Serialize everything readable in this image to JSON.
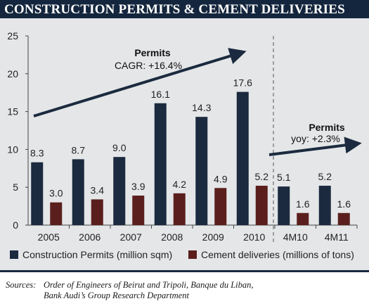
{
  "chart_data": {
    "type": "bar",
    "title": "CONSTRUCTION PERMITS & CEMENT DELIVERIES",
    "categories": [
      "2005",
      "2006",
      "2007",
      "2008",
      "2009",
      "2010",
      "4M10",
      "4M11"
    ],
    "series": [
      {
        "name": "Construction Permits (million sqm)",
        "values": [
          8.3,
          8.7,
          9.0,
          16.1,
          14.3,
          17.6,
          5.1,
          5.2
        ],
        "labels": [
          "8.3",
          "8.7",
          "9.0",
          "16.1",
          "14.3",
          "17.6",
          "5.1",
          "5.2"
        ],
        "color": "#1b2a3e"
      },
      {
        "name": "Cement deliveries (millions of tons)",
        "values": [
          3.0,
          3.4,
          3.9,
          4.2,
          4.9,
          5.2,
          1.6,
          1.6
        ],
        "labels": [
          "3.0",
          "3.4",
          "3.9",
          "4.2",
          "4.9",
          "5.2",
          "1.6",
          "1.6"
        ],
        "color": "#5a1f1c"
      }
    ],
    "ylim": [
      0,
      25
    ],
    "yticks": [
      "0",
      "5",
      "10",
      "15",
      "20",
      "25"
    ],
    "grid": false,
    "legend": "bottom",
    "annotations": [
      {
        "line1": "Permits",
        "line2": "CAGR: +16.4%"
      },
      {
        "line1": "Permits",
        "line2": "yoy: +2.3%"
      }
    ]
  },
  "sources": {
    "label": "Sources:",
    "line1": "Order of Engineers of Beirut and Tripoli, Banque du Liban,",
    "line2": "Bank Audi’s Group Research Department"
  }
}
